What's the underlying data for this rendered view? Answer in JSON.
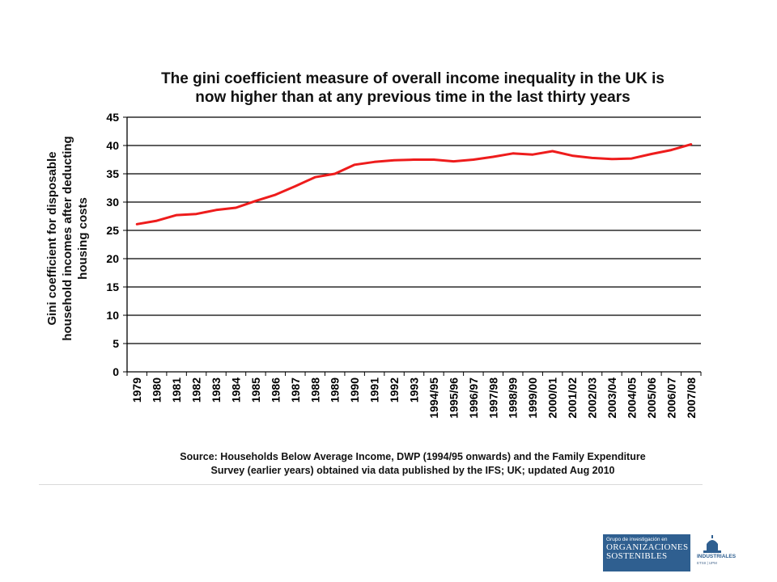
{
  "chart_data": {
    "type": "line",
    "title_lines": [
      "The gini coefficient measure of overall income inequality in the UK is",
      "now higher than at any previous time in the last thirty years"
    ],
    "ylabel_lines": [
      "Gini coefficient for disposable",
      "household incomes after deducting",
      "housing costs"
    ],
    "xlabel": "",
    "ylim": [
      0,
      45
    ],
    "yticks": [
      0,
      5,
      10,
      15,
      20,
      25,
      30,
      35,
      40,
      45
    ],
    "grid": true,
    "legend": "none",
    "line_color": "#ee1c1c",
    "categories": [
      "1979",
      "1980",
      "1981",
      "1982",
      "1983",
      "1984",
      "1985",
      "1986",
      "1987",
      "1988",
      "1989",
      "1990",
      "1991",
      "1992",
      "1993",
      "1994/95",
      "1995/96",
      "1996/97",
      "1997/98",
      "1998/99",
      "1999/00",
      "2000/01",
      "2001/02",
      "2002/03",
      "2003/04",
      "2004/05",
      "2005/06",
      "2006/07",
      "2007/08"
    ],
    "series": [
      {
        "values": [
          26.1,
          26.7,
          27.7,
          27.9,
          28.6,
          29.0,
          30.2,
          31.3,
          32.8,
          34.4,
          35.0,
          36.6,
          37.1,
          37.4,
          37.5,
          37.5,
          37.2,
          37.5,
          38.0,
          38.6,
          38.4,
          39.0,
          38.2,
          37.8,
          37.6,
          37.7,
          38.5,
          39.2,
          40.2
        ]
      }
    ],
    "source_lines": [
      "Source: Households Below Average Income, DWP (1994/95 onwards) and the Family Expenditure",
      "Survey (earlier years) obtained via data published by the IFS; UK; updated Aug 2010"
    ]
  },
  "logo": {
    "small_text": "Grupo de investigación en",
    "line1": "ORGANIZACIONES",
    "line2": "SOSTENIBLES",
    "right_name": "INDUSTRIALES",
    "right_sub": "ETSII | UPM"
  },
  "colors": {
    "logo_blue": "#2f5f90",
    "grid": "#000000",
    "line": "#ee1c1c"
  }
}
